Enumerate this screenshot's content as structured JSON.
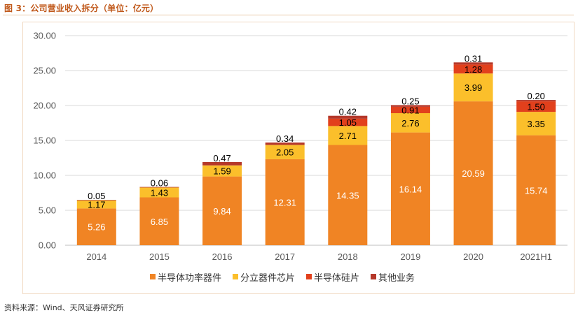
{
  "header": {
    "title": "图 3：公司营业收入拆分（单位：亿元）"
  },
  "footer": {
    "source": "资料来源：Wind、天风证券研究所"
  },
  "chart_data": {
    "type": "bar",
    "stacked": true,
    "title": "",
    "xlabel": "",
    "ylabel": "",
    "ylim": [
      0,
      30
    ],
    "yticks": [
      "0.00",
      "5.00",
      "10.00",
      "15.00",
      "20.00",
      "25.00",
      "30.00"
    ],
    "grid": true,
    "legend_position": "bottom",
    "categories": [
      "2014",
      "2015",
      "2016",
      "2017",
      "2018",
      "2019",
      "2020",
      "2021H1"
    ],
    "series": [
      {
        "name": "半导体功率器件",
        "color": "#F08424",
        "values": [
          5.26,
          6.85,
          9.84,
          12.31,
          14.35,
          16.14,
          20.59,
          15.74
        ],
        "labels": [
          "5.26",
          "6.85",
          "9.84",
          "12.31",
          "14.35",
          "16.14",
          "20.59",
          "15.74"
        ]
      },
      {
        "name": "分立器件芯片",
        "color": "#FBBF2B",
        "values": [
          1.17,
          1.43,
          1.59,
          2.05,
          2.71,
          2.76,
          3.99,
          3.35
        ],
        "labels": [
          "1.17",
          "1.43",
          "1.59",
          "2.05",
          "2.71",
          "2.76",
          "3.99",
          "3.35"
        ]
      },
      {
        "name": "半导体硅片",
        "color": "#E2401C",
        "values": [
          0,
          0,
          0,
          0,
          1.05,
          0.91,
          1.28,
          1.5
        ],
        "labels": [
          "",
          "",
          "",
          "",
          "1.05",
          "0.91",
          "1.28",
          "1.50"
        ]
      },
      {
        "name": "其他业务",
        "color": "#B5382A",
        "values": [
          0.05,
          0.06,
          0.47,
          0.34,
          0.42,
          0.25,
          0.31,
          0.2
        ],
        "labels": [
          "0.05",
          "0.06",
          "0.47",
          "0.34",
          "0.42",
          "0.25",
          "0.31",
          "0.20"
        ]
      }
    ]
  }
}
